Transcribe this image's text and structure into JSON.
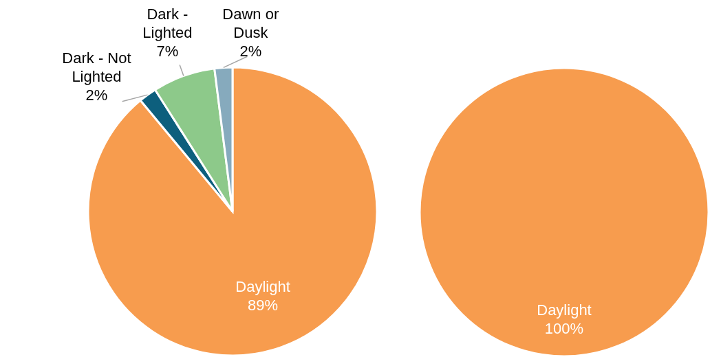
{
  "chart_data": [
    {
      "type": "pie",
      "categories": [
        "Daylight",
        "Dark - Not Lighted",
        "Dark - Lighted",
        "Dawn or Dusk"
      ],
      "values": [
        89,
        2,
        7,
        2
      ],
      "colors": [
        "#f79c4e",
        "#0d5f7d",
        "#8dc98a",
        "#86aabd"
      ],
      "value_labels": [
        "89%",
        "2%",
        "7%",
        "2%"
      ]
    },
    {
      "type": "pie",
      "categories": [
        "Daylight"
      ],
      "values": [
        100
      ],
      "colors": [
        "#f79c4e"
      ],
      "value_labels": [
        "100%"
      ]
    }
  ]
}
